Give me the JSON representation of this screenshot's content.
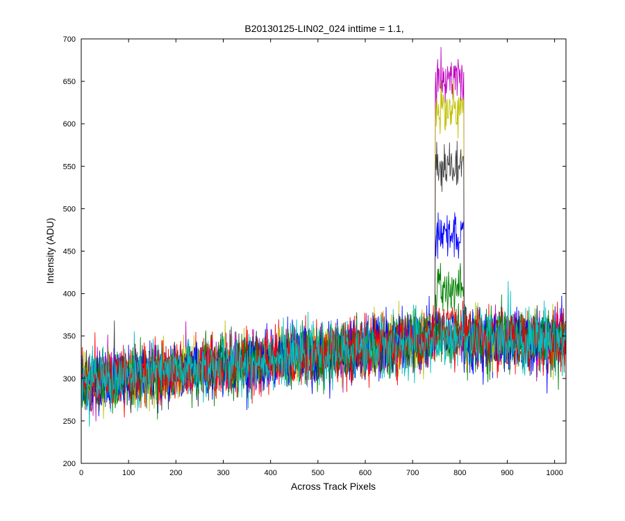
{
  "chart_data": {
    "type": "line",
    "title": "B20130125-LIN02_024 inttime = 1.1,",
    "xlabel": "Across Track Pixels",
    "ylabel": "Intensity (ADU)",
    "xlim": [
      0,
      1024
    ],
    "ylim": [
      200,
      700
    ],
    "xticks": [
      0,
      100,
      200,
      300,
      400,
      500,
      600,
      700,
      800,
      900,
      1000
    ],
    "yticks": [
      200,
      250,
      300,
      350,
      400,
      450,
      500,
      550,
      600,
      650,
      700
    ],
    "grid": false,
    "legend": "none",
    "n_points": 1024,
    "baseline": {
      "x": [
        0,
        740,
        1024
      ],
      "y": [
        295,
        345,
        347
      ]
    },
    "peak_window": [
      748,
      808
    ],
    "series": [
      {
        "color": "#0000ff",
        "noise": 16,
        "peak_level": 465
      },
      {
        "color": "#008000",
        "noise": 16,
        "peak_level": 405
      },
      {
        "color": "#ff0000",
        "noise": 16,
        "peak_level": 362
      },
      {
        "color": "#00bfbf",
        "noise": 16,
        "peak_level": 350
      },
      {
        "color": "#bf00bf",
        "noise": 16,
        "peak_level": 655
      },
      {
        "color": "#bfbf00",
        "noise": 16,
        "peak_level": 618
      },
      {
        "color": "#404040",
        "noise": 16,
        "peak_level": 553
      },
      {
        "color": "#0000ff",
        "noise": 16,
        "peak_level": 350
      },
      {
        "color": "#008000",
        "noise": 16,
        "peak_level": 348
      },
      {
        "color": "#ff0000",
        "noise": 16,
        "peak_level": 352
      },
      {
        "color": "#00bfbf",
        "noise": 16,
        "peak_level": 345
      }
    ]
  }
}
